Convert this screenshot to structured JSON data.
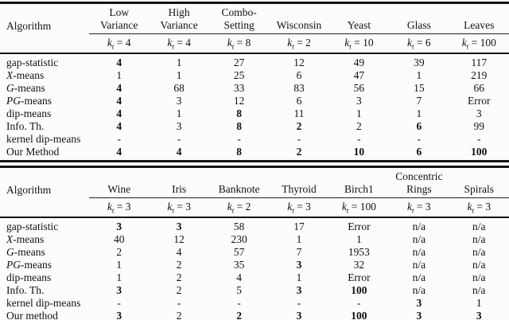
{
  "k_notation": {
    "symbol": "k",
    "subscript": "t",
    "equals": "="
  },
  "tables": [
    {
      "name": "synthetic-and-real-benchmarks",
      "algorithm_header": "Algorithm",
      "columns": [
        {
          "lines": [
            "Low",
            "Variance"
          ],
          "k_value": "4"
        },
        {
          "lines": [
            "High",
            "Variance"
          ],
          "k_value": "4"
        },
        {
          "lines": [
            "Combo-",
            "Setting"
          ],
          "k_value": "8"
        },
        {
          "lines": [
            "Wisconsin"
          ],
          "k_value": "2"
        },
        {
          "lines": [
            "Yeast"
          ],
          "k_value": "10"
        },
        {
          "lines": [
            "Glass"
          ],
          "k_value": "6"
        },
        {
          "lines": [
            "Leaves"
          ],
          "k_value": "100"
        }
      ],
      "rows": [
        {
          "alg_italic": "",
          "alg_rest": "gap-statistic",
          "cells": [
            {
              "v": "4",
              "b": true
            },
            {
              "v": "1"
            },
            {
              "v": "27"
            },
            {
              "v": "12"
            },
            {
              "v": "49"
            },
            {
              "v": "39"
            },
            {
              "v": "117"
            }
          ]
        },
        {
          "alg_italic": "X",
          "alg_rest": "-means",
          "cells": [
            {
              "v": "1"
            },
            {
              "v": "1"
            },
            {
              "v": "25"
            },
            {
              "v": "6"
            },
            {
              "v": "47"
            },
            {
              "v": "1"
            },
            {
              "v": "219"
            }
          ]
        },
        {
          "alg_italic": "G",
          "alg_rest": "-means",
          "cells": [
            {
              "v": "4",
              "b": true
            },
            {
              "v": "68"
            },
            {
              "v": "33"
            },
            {
              "v": "83"
            },
            {
              "v": "56"
            },
            {
              "v": "15"
            },
            {
              "v": "66"
            }
          ]
        },
        {
          "alg_italic": "PG",
          "alg_rest": "-means",
          "cells": [
            {
              "v": "4",
              "b": true
            },
            {
              "v": "3"
            },
            {
              "v": "12"
            },
            {
              "v": "6"
            },
            {
              "v": "3"
            },
            {
              "v": "7"
            },
            {
              "v": "Error"
            }
          ]
        },
        {
          "alg_italic": "",
          "alg_rest": "dip-means",
          "cells": [
            {
              "v": "4",
              "b": true
            },
            {
              "v": "1"
            },
            {
              "v": "8",
              "b": true
            },
            {
              "v": "11"
            },
            {
              "v": "1"
            },
            {
              "v": "1"
            },
            {
              "v": "3"
            }
          ]
        },
        {
          "alg_italic": "",
          "alg_rest": "Info. Th.",
          "cells": [
            {
              "v": "4",
              "b": true
            },
            {
              "v": "3"
            },
            {
              "v": "8",
              "b": true
            },
            {
              "v": "2",
              "b": true
            },
            {
              "v": "2"
            },
            {
              "v": "6",
              "b": true
            },
            {
              "v": "99"
            }
          ]
        },
        {
          "alg_italic": "",
          "alg_rest": "kernel dip-means",
          "cells": [
            {
              "v": "-"
            },
            {
              "v": "-"
            },
            {
              "v": "-"
            },
            {
              "v": "-"
            },
            {
              "v": "-"
            },
            {
              "v": "-"
            },
            {
              "v": "-"
            }
          ]
        },
        {
          "alg_italic": "",
          "alg_rest": "Our Method",
          "cells": [
            {
              "v": "4",
              "b": true
            },
            {
              "v": "4",
              "b": true
            },
            {
              "v": "8",
              "b": true
            },
            {
              "v": "2",
              "b": true
            },
            {
              "v": "10",
              "b": true
            },
            {
              "v": "6",
              "b": true
            },
            {
              "v": "100",
              "b": true
            }
          ]
        }
      ]
    },
    {
      "name": "real-world-datasets",
      "algorithm_header": "Algorithm",
      "columns": [
        {
          "lines": [
            "Wine"
          ],
          "k_value": "3"
        },
        {
          "lines": [
            "Iris"
          ],
          "k_value": "3"
        },
        {
          "lines": [
            "Banknote"
          ],
          "k_value": "2"
        },
        {
          "lines": [
            "Thyroid"
          ],
          "k_value": "3"
        },
        {
          "lines": [
            "Birch1"
          ],
          "k_value": "100"
        },
        {
          "lines": [
            "Concentric",
            "Rings"
          ],
          "k_value": "3"
        },
        {
          "lines": [
            "Spirals"
          ],
          "k_value": "3"
        }
      ],
      "rows": [
        {
          "alg_italic": "",
          "alg_rest": "gap-statistic",
          "cells": [
            {
              "v": "3",
              "b": true
            },
            {
              "v": "3",
              "b": true
            },
            {
              "v": "58"
            },
            {
              "v": "17"
            },
            {
              "v": "Error"
            },
            {
              "v": "n/a"
            },
            {
              "v": "n/a"
            }
          ]
        },
        {
          "alg_italic": "X",
          "alg_rest": "-means",
          "cells": [
            {
              "v": "40"
            },
            {
              "v": "12"
            },
            {
              "v": "230"
            },
            {
              "v": "1"
            },
            {
              "v": "1"
            },
            {
              "v": "n/a"
            },
            {
              "v": "n/a"
            }
          ]
        },
        {
          "alg_italic": "G",
          "alg_rest": "-means",
          "cells": [
            {
              "v": "2"
            },
            {
              "v": "4"
            },
            {
              "v": "57"
            },
            {
              "v": "7"
            },
            {
              "v": "1953"
            },
            {
              "v": "n/a"
            },
            {
              "v": "n/a"
            }
          ]
        },
        {
          "alg_italic": "PG",
          "alg_rest": "-means",
          "cells": [
            {
              "v": "1"
            },
            {
              "v": "2"
            },
            {
              "v": "35"
            },
            {
              "v": "3",
              "b": true
            },
            {
              "v": "32"
            },
            {
              "v": "n/a"
            },
            {
              "v": "n/a"
            }
          ]
        },
        {
          "alg_italic": "",
          "alg_rest": "dip-means",
          "cells": [
            {
              "v": "1"
            },
            {
              "v": "2"
            },
            {
              "v": "4"
            },
            {
              "v": "1"
            },
            {
              "v": "Error"
            },
            {
              "v": "n/a"
            },
            {
              "v": "n/a"
            }
          ]
        },
        {
          "alg_italic": "",
          "alg_rest": "Info. Th.",
          "cells": [
            {
              "v": "3",
              "b": true
            },
            {
              "v": "2"
            },
            {
              "v": "5"
            },
            {
              "v": "3",
              "b": true
            },
            {
              "v": "100",
              "b": true
            },
            {
              "v": "n/a"
            },
            {
              "v": "n/a"
            }
          ]
        },
        {
          "alg_italic": "",
          "alg_rest": "kernel dip-means",
          "cells": [
            {
              "v": "-"
            },
            {
              "v": "-"
            },
            {
              "v": "-"
            },
            {
              "v": "-"
            },
            {
              "v": "-"
            },
            {
              "v": "3",
              "b": true
            },
            {
              "v": "1"
            }
          ]
        },
        {
          "alg_italic": "",
          "alg_rest": "Our method",
          "cells": [
            {
              "v": "3",
              "b": true
            },
            {
              "v": "2"
            },
            {
              "v": "2",
              "b": true
            },
            {
              "v": "3",
              "b": true
            },
            {
              "v": "100",
              "b": true
            },
            {
              "v": "3",
              "b": true
            },
            {
              "v": "3",
              "b": true
            }
          ]
        }
      ]
    }
  ]
}
